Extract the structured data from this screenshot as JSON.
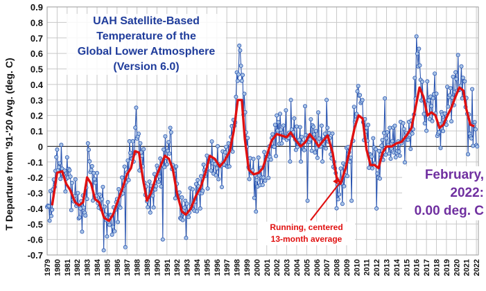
{
  "chart_data": {
    "type": "line",
    "title_lines": [
      "UAH Satellite-Based",
      "Temperature of the",
      "Global Lower Atmosphere",
      "(Version 6.0)"
    ],
    "ylabel": "T Departure from '91-'20 Avg. (deg. C)",
    "xlabel": "",
    "ylim": [
      -0.7,
      0.9
    ],
    "xlim": [
      1979,
      2022.2
    ],
    "y_ticks": [
      "-0.7",
      "-0.6",
      "-0.5",
      "-0.4",
      "-0.3",
      "-0.2",
      "-0.1",
      "0",
      "0.1",
      "0.2",
      "0.3",
      "0.4",
      "0.5",
      "0.6",
      "0.7",
      "0.8",
      "0.9"
    ],
    "x_ticks": [
      "1979",
      "1980",
      "1981",
      "1982",
      "1983",
      "1984",
      "1985",
      "1986",
      "1987",
      "1988",
      "1989",
      "1990",
      "1991",
      "1992",
      "1993",
      "1994",
      "1995",
      "1996",
      "1997",
      "1998",
      "1999",
      "2000",
      "2001",
      "2002",
      "2003",
      "2004",
      "2005",
      "2006",
      "2007",
      "2008",
      "2009",
      "2010",
      "2011",
      "2012",
      "2013",
      "2014",
      "2015",
      "2016",
      "2017",
      "2018",
      "2019",
      "2020",
      "2021",
      "2022"
    ],
    "grid": true,
    "series": [
      {
        "role": "monthly",
        "color": "#2a55b0",
        "marker_fill": "#a9c4e6",
        "anchors": [
          [
            1979.0,
            -0.45
          ],
          [
            1979.4,
            -0.38
          ],
          [
            1979.8,
            -0.2
          ],
          [
            1980.3,
            -0.1
          ],
          [
            1980.7,
            -0.2
          ],
          [
            1981.1,
            -0.15
          ],
          [
            1981.5,
            -0.3
          ],
          [
            1982.0,
            -0.35
          ],
          [
            1982.5,
            -0.45
          ],
          [
            1982.9,
            -0.35
          ],
          [
            1983.2,
            -0.1
          ],
          [
            1983.6,
            -0.2
          ],
          [
            1984.0,
            -0.3
          ],
          [
            1984.4,
            -0.35
          ],
          [
            1984.9,
            -0.45
          ],
          [
            1985.3,
            -0.5
          ],
          [
            1985.8,
            -0.45
          ],
          [
            1986.2,
            -0.35
          ],
          [
            1986.7,
            -0.25
          ],
          [
            1987.2,
            -0.1
          ],
          [
            1987.7,
            0.0
          ],
          [
            1988.0,
            0.05
          ],
          [
            1988.5,
            -0.05
          ],
          [
            1988.9,
            -0.3
          ],
          [
            1989.3,
            -0.35
          ],
          [
            1989.8,
            -0.25
          ],
          [
            1990.3,
            -0.15
          ],
          [
            1990.8,
            -0.05
          ],
          [
            1991.3,
            0.0
          ],
          [
            1991.7,
            -0.15
          ],
          [
            1992.2,
            -0.35
          ],
          [
            1992.7,
            -0.45
          ],
          [
            1993.2,
            -0.4
          ],
          [
            1993.7,
            -0.35
          ],
          [
            1994.2,
            -0.3
          ],
          [
            1994.7,
            -0.2
          ],
          [
            1995.2,
            -0.1
          ],
          [
            1995.7,
            -0.1
          ],
          [
            1996.2,
            -0.15
          ],
          [
            1996.7,
            -0.1
          ],
          [
            1997.2,
            -0.05
          ],
          [
            1997.7,
            0.1
          ],
          [
            1998.0,
            0.4
          ],
          [
            1998.3,
            0.55
          ],
          [
            1998.6,
            0.4
          ],
          [
            1998.9,
            0.1
          ],
          [
            1999.3,
            -0.15
          ],
          [
            1999.8,
            -0.2
          ],
          [
            2000.3,
            -0.2
          ],
          [
            2000.8,
            -0.15
          ],
          [
            2001.3,
            -0.05
          ],
          [
            2001.8,
            0.05
          ],
          [
            2002.3,
            0.1
          ],
          [
            2002.8,
            0.1
          ],
          [
            2003.3,
            0.05
          ],
          [
            2003.8,
            0.1
          ],
          [
            2004.3,
            0.0
          ],
          [
            2004.8,
            0.05
          ],
          [
            2005.3,
            0.1
          ],
          [
            2005.8,
            0.05
          ],
          [
            2006.3,
            0.0
          ],
          [
            2006.8,
            0.05
          ],
          [
            2007.2,
            0.1
          ],
          [
            2007.7,
            -0.1
          ],
          [
            2008.1,
            -0.3
          ],
          [
            2008.6,
            -0.2
          ],
          [
            2009.1,
            -0.1
          ],
          [
            2009.6,
            0.05
          ],
          [
            2010.1,
            0.3
          ],
          [
            2010.5,
            0.25
          ],
          [
            2010.9,
            0.1
          ],
          [
            2011.3,
            -0.05
          ],
          [
            2011.8,
            -0.05
          ],
          [
            2012.3,
            -0.15
          ],
          [
            2012.7,
            0.05
          ],
          [
            2013.2,
            0.0
          ],
          [
            2013.7,
            0.05
          ],
          [
            2014.2,
            0.0
          ],
          [
            2014.7,
            0.05
          ],
          [
            2015.2,
            0.05
          ],
          [
            2015.7,
            0.15
          ],
          [
            2016.1,
            0.6
          ],
          [
            2016.5,
            0.35
          ],
          [
            2016.9,
            0.2
          ],
          [
            2017.3,
            0.25
          ],
          [
            2017.8,
            0.3
          ],
          [
            2018.2,
            0.1
          ],
          [
            2018.7,
            0.15
          ],
          [
            2019.2,
            0.3
          ],
          [
            2019.7,
            0.3
          ],
          [
            2020.1,
            0.45
          ],
          [
            2020.5,
            0.4
          ],
          [
            2020.9,
            0.35
          ],
          [
            2021.3,
            0.05
          ],
          [
            2021.7,
            0.15
          ],
          [
            2022.0,
            0.05
          ],
          [
            2022.1,
            0.0
          ]
        ],
        "spikes": [
          [
            1980.0,
            -0.02
          ],
          [
            1982.5,
            -0.55
          ],
          [
            1983.1,
            0.02
          ],
          [
            1984.7,
            -0.67
          ],
          [
            1986.8,
            -0.65
          ],
          [
            1987.9,
            0.25
          ],
          [
            1990.6,
            -0.6
          ],
          [
            1991.3,
            0.12
          ],
          [
            1992.9,
            -0.59
          ],
          [
            1994.3,
            -0.4
          ],
          [
            1997.9,
            0.32
          ],
          [
            1998.3,
            0.62
          ],
          [
            1998.45,
            0.52
          ],
          [
            1999.9,
            -0.42
          ],
          [
            2002.0,
            0.2
          ],
          [
            2003.4,
            0.3
          ],
          [
            2004.8,
            0.26
          ],
          [
            2005.1,
            -0.35
          ],
          [
            2006.2,
            0.22
          ],
          [
            2007.0,
            0.3
          ],
          [
            2008.2,
            -0.34
          ],
          [
            2008.6,
            -0.37
          ],
          [
            2009.5,
            -0.35
          ],
          [
            2010.2,
            0.39
          ],
          [
            2010.5,
            0.29
          ],
          [
            2011.0,
            0.12
          ],
          [
            2012.0,
            -0.4
          ],
          [
            2012.8,
            0.31
          ],
          [
            2013.9,
            -0.07
          ],
          [
            2014.7,
            0.15
          ],
          [
            2016.0,
            0.71
          ],
          [
            2016.25,
            0.63
          ],
          [
            2017.1,
            0.42
          ],
          [
            2017.8,
            0.47
          ],
          [
            2018.4,
            -0.01
          ],
          [
            2019.7,
            0.45
          ],
          [
            2020.2,
            0.59
          ],
          [
            2020.8,
            0.42
          ],
          [
            2021.2,
            -0.05
          ],
          [
            2021.6,
            0.37
          ]
        ],
        "last_value": 0.0
      },
      {
        "role": "running-13-month",
        "color": "#e01010",
        "points": [
          [
            1979.5,
            -0.38
          ],
          [
            1980.0,
            -0.17
          ],
          [
            1980.5,
            -0.16
          ],
          [
            1980.9,
            -0.24
          ],
          [
            1981.3,
            -0.28
          ],
          [
            1981.8,
            -0.36
          ],
          [
            1982.2,
            -0.38
          ],
          [
            1982.6,
            -0.36
          ],
          [
            1983.0,
            -0.2
          ],
          [
            1983.4,
            -0.24
          ],
          [
            1983.8,
            -0.34
          ],
          [
            1984.2,
            -0.36
          ],
          [
            1984.7,
            -0.46
          ],
          [
            1985.2,
            -0.48
          ],
          [
            1985.6,
            -0.44
          ],
          [
            1986.1,
            -0.35
          ],
          [
            1986.6,
            -0.26
          ],
          [
            1987.0,
            -0.18
          ],
          [
            1987.4,
            -0.14
          ],
          [
            1987.8,
            -0.03
          ],
          [
            1988.2,
            -0.04
          ],
          [
            1988.6,
            -0.21
          ],
          [
            1989.0,
            -0.35
          ],
          [
            1989.4,
            -0.3
          ],
          [
            1989.9,
            -0.2
          ],
          [
            1990.4,
            -0.12
          ],
          [
            1990.8,
            -0.06
          ],
          [
            1991.2,
            -0.08
          ],
          [
            1991.6,
            -0.15
          ],
          [
            1992.0,
            -0.3
          ],
          [
            1992.5,
            -0.42
          ],
          [
            1992.9,
            -0.44
          ],
          [
            1993.4,
            -0.4
          ],
          [
            1993.9,
            -0.32
          ],
          [
            1994.4,
            -0.26
          ],
          [
            1994.9,
            -0.16
          ],
          [
            1995.3,
            -0.06
          ],
          [
            1995.8,
            -0.08
          ],
          [
            1996.3,
            -0.13
          ],
          [
            1996.8,
            -0.09
          ],
          [
            1997.3,
            -0.03
          ],
          [
            1997.7,
            0.1
          ],
          [
            1998.1,
            0.3
          ],
          [
            1998.5,
            0.3
          ],
          [
            1998.8,
            0.05
          ],
          [
            1999.2,
            -0.15
          ],
          [
            1999.7,
            -0.18
          ],
          [
            2000.2,
            -0.17
          ],
          [
            2000.6,
            -0.14
          ],
          [
            2001.1,
            -0.04
          ],
          [
            2001.5,
            0.04
          ],
          [
            2002.0,
            0.08
          ],
          [
            2002.5,
            0.07
          ],
          [
            2003.0,
            0.06
          ],
          [
            2003.4,
            0.09
          ],
          [
            2003.9,
            0.04
          ],
          [
            2004.4,
            0.0
          ],
          [
            2004.9,
            0.03
          ],
          [
            2005.3,
            0.08
          ],
          [
            2005.8,
            0.04
          ],
          [
            2006.2,
            0.0
          ],
          [
            2006.7,
            0.04
          ],
          [
            2007.1,
            0.07
          ],
          [
            2007.6,
            -0.04
          ],
          [
            2008.0,
            -0.2
          ],
          [
            2008.4,
            -0.24
          ],
          [
            2008.9,
            -0.14
          ],
          [
            2009.4,
            0.0
          ],
          [
            2009.8,
            0.12
          ],
          [
            2010.2,
            0.2
          ],
          [
            2010.6,
            0.18
          ],
          [
            2011.0,
            -0.02
          ],
          [
            2011.4,
            -0.12
          ],
          [
            2011.8,
            -0.12
          ],
          [
            2012.2,
            -0.14
          ],
          [
            2012.6,
            -0.04
          ],
          [
            2013.0,
            0.0
          ],
          [
            2013.5,
            0.0
          ],
          [
            2014.0,
            0.02
          ],
          [
            2014.5,
            0.03
          ],
          [
            2015.0,
            0.07
          ],
          [
            2015.5,
            0.12
          ],
          [
            2015.9,
            0.25
          ],
          [
            2016.3,
            0.38
          ],
          [
            2016.7,
            0.32
          ],
          [
            2017.1,
            0.2
          ],
          [
            2017.5,
            0.22
          ],
          [
            2017.9,
            0.2
          ],
          [
            2018.3,
            0.12
          ],
          [
            2018.7,
            0.14
          ],
          [
            2019.1,
            0.2
          ],
          [
            2019.5,
            0.25
          ],
          [
            2019.9,
            0.32
          ],
          [
            2020.3,
            0.38
          ],
          [
            2020.7,
            0.36
          ],
          [
            2021.0,
            0.24
          ],
          [
            2021.4,
            0.14
          ],
          [
            2021.8,
            0.13
          ]
        ]
      }
    ],
    "annotations": {
      "running_note": [
        "Running, centered",
        "13-month average"
      ],
      "current_label": [
        "February,",
        "2022:",
        "0.00 deg. C"
      ]
    }
  },
  "colors": {
    "title": "#1f3c9b",
    "current": "#7030a0",
    "running": "#e01010",
    "grid": "#c8c8c8"
  }
}
